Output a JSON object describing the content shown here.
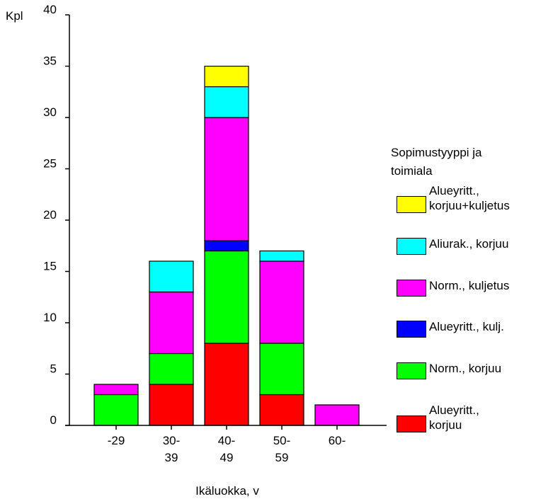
{
  "chart_data": {
    "type": "bar",
    "stacked": true,
    "ylabel": "Kpl",
    "xlabel": "Ikäluokka, v",
    "ylim": [
      0,
      40
    ],
    "yticks": [
      0,
      5,
      10,
      15,
      20,
      25,
      30,
      35,
      40
    ],
    "grid": false,
    "legend_position": "right",
    "legend_title": [
      "Sopimustyyppi ja",
      "toimiala"
    ],
    "categories": [
      "-29",
      "30-39",
      "40-49",
      "50-59",
      "60-"
    ],
    "category_labels": [
      [
        "-29"
      ],
      [
        "30-",
        "39"
      ],
      [
        "40-",
        "49"
      ],
      [
        "50-",
        "59"
      ],
      [
        "60-"
      ]
    ],
    "series": [
      {
        "name": "Alueyritt., korjuu",
        "label_lines": [
          "Alueyritt.,",
          "korjuu"
        ],
        "color": "#ff0000",
        "values": [
          0,
          4,
          8,
          3,
          0
        ]
      },
      {
        "name": "Norm., korjuu",
        "label_lines": [
          "Norm., korjuu"
        ],
        "color": "#00ff00",
        "values": [
          3,
          3,
          9,
          5,
          0
        ]
      },
      {
        "name": "Alueyritt., kulj.",
        "label_lines": [
          "Alueyritt., kulj."
        ],
        "color": "#0000ff",
        "values": [
          0,
          0,
          1,
          0,
          0
        ]
      },
      {
        "name": "Norm., kuljetus",
        "label_lines": [
          "Norm., kuljetus"
        ],
        "color": "#ff00ff",
        "values": [
          1,
          6,
          12,
          8,
          2
        ]
      },
      {
        "name": "Aliurak., korjuu",
        "label_lines": [
          "Aliurak., korjuu"
        ],
        "color": "#00ffff",
        "values": [
          0,
          3,
          3,
          1,
          0
        ]
      },
      {
        "name": "Alueyritt., korjuu+kuljetus",
        "label_lines": [
          "Alueyritt.,",
          "korjuu+kuljetus"
        ],
        "color": "#ffff00",
        "values": [
          0,
          0,
          2,
          0,
          0
        ]
      }
    ]
  }
}
